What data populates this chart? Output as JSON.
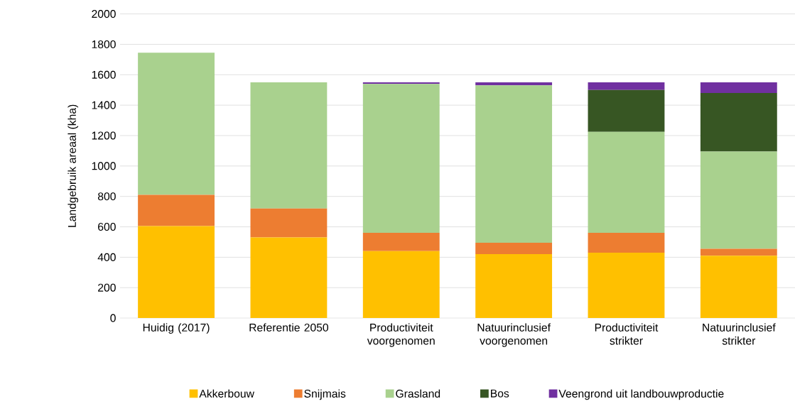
{
  "chart_data": {
    "type": "bar",
    "stacked": true,
    "ylabel": "Landgebruik areaal (kha)",
    "categories": [
      "Huidig (2017)",
      "Referentie 2050",
      "Productiviteit voorgenomen",
      "Natuurinclusief voorgenomen",
      "Productiviteit strikter",
      "Natuurinclusief strikter"
    ],
    "series": [
      {
        "name": "Akkerbouw",
        "color": "#ffc000",
        "values": [
          605,
          530,
          440,
          420,
          430,
          410
        ]
      },
      {
        "name": "Snijmais",
        "color": "#ed7d31",
        "values": [
          205,
          190,
          120,
          75,
          130,
          45
        ]
      },
      {
        "name": "Grasland",
        "color": "#a9d18e",
        "values": [
          935,
          830,
          980,
          1035,
          665,
          640
        ]
      },
      {
        "name": "Bos",
        "color": "#375623",
        "values": [
          0,
          0,
          0,
          0,
          275,
          385
        ]
      },
      {
        "name": "Veengrond uit landbouwproductie",
        "color": "#7030a0",
        "values": [
          0,
          0,
          10,
          20,
          50,
          70
        ]
      }
    ],
    "ylim": [
      0,
      2000
    ],
    "yticks": [
      0,
      200,
      400,
      600,
      800,
      1000,
      1200,
      1400,
      1600,
      1800,
      2000
    ],
    "grid": "y",
    "legend": "bottom"
  }
}
